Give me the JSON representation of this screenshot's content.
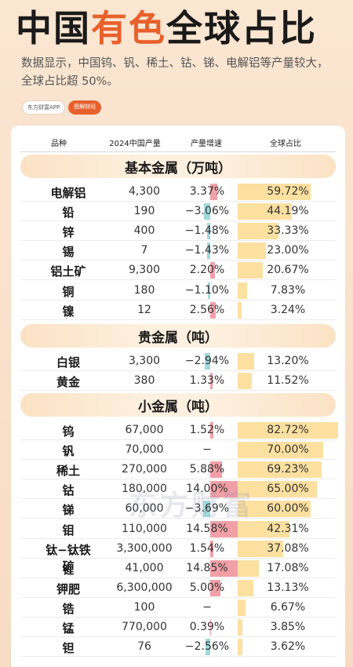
{
  "title": {
    "part1": "中国",
    "highlight": "有色",
    "part2": "全球占比"
  },
  "subtitle": "数据显示，中国钨、钒、稀土、钴、锑、电解铝等产量较大，全球占比超 50%。",
  "tags": {
    "app": "东方财富APP",
    "finance": "图解财经"
  },
  "watermark": "东方财富",
  "colors": {
    "accent": "#e8602c",
    "positive": "#f2a0a8",
    "negative": "#9fd9dd",
    "share": "#fbe0a0"
  },
  "chart_data": {
    "type": "table",
    "columns": [
      "品种",
      "2024中国产量",
      "产量增速",
      "全球占比"
    ],
    "groups": [
      {
        "name": "基本金属（万吨）",
        "rows": [
          {
            "name": "电解铝",
            "production": "4,300",
            "growth": 3.37,
            "growth_label": "3.37%",
            "share": 59.72,
            "share_label": "59.72%"
          },
          {
            "name": "铅",
            "production": "190",
            "growth": -3.06,
            "growth_label": "−3.06%",
            "share": 44.19,
            "share_label": "44.19%"
          },
          {
            "name": "锌",
            "production": "400",
            "growth": -1.48,
            "growth_label": "−1.48%",
            "share": 33.33,
            "share_label": "33.33%"
          },
          {
            "name": "锡",
            "production": "7",
            "growth": -1.43,
            "growth_label": "−1.43%",
            "share": 23.0,
            "share_label": "23.00%"
          },
          {
            "name": "铝土矿",
            "production": "9,300",
            "growth": 2.2,
            "growth_label": "2.20%",
            "share": 20.67,
            "share_label": "20.67%"
          },
          {
            "name": "铜",
            "production": "180",
            "growth": -1.1,
            "growth_label": "−1.10%",
            "share": 7.83,
            "share_label": "7.83%"
          },
          {
            "name": "镍",
            "production": "12",
            "growth": 2.56,
            "growth_label": "2.56%",
            "share": 3.24,
            "share_label": "3.24%"
          }
        ]
      },
      {
        "name": "贵金属（吨）",
        "rows": [
          {
            "name": "白银",
            "production": "3,300",
            "growth": -2.94,
            "growth_label": "−2.94%",
            "share": 13.2,
            "share_label": "13.20%"
          },
          {
            "name": "黄金",
            "production": "380",
            "growth": 1.33,
            "growth_label": "1.33%",
            "share": 11.52,
            "share_label": "11.52%"
          }
        ]
      },
      {
        "name": "小金属（吨）",
        "rows": [
          {
            "name": "钨",
            "production": "67,000",
            "growth": 1.52,
            "growth_label": "1.52%",
            "share": 82.72,
            "share_label": "82.72%"
          },
          {
            "name": "钒",
            "production": "70,000",
            "growth": null,
            "growth_label": "−",
            "share": 70.0,
            "share_label": "70.00%"
          },
          {
            "name": "稀土",
            "production": "270,000",
            "growth": 5.88,
            "growth_label": "5.88%",
            "share": 69.23,
            "share_label": "69.23%"
          },
          {
            "name": "钴",
            "production": "180,000",
            "growth": 14.0,
            "growth_label": "14.00%",
            "share": 65.0,
            "share_label": "65.00%"
          },
          {
            "name": "锑",
            "production": "60,000",
            "growth": -3.69,
            "growth_label": "−3.69%",
            "share": 60.0,
            "share_label": "60.00%"
          },
          {
            "name": "钼",
            "production": "110,000",
            "growth": 14.58,
            "growth_label": "14.58%",
            "share": 42.31,
            "share_label": "42.31%"
          },
          {
            "name": "钛−钛铁矿",
            "production": "3,300,000",
            "growth": 1.54,
            "growth_label": "1.54%",
            "share": 37.08,
            "share_label": "37.08%"
          },
          {
            "name": "锂",
            "production": "41,000",
            "growth": 14.85,
            "growth_label": "14.85%",
            "share": 17.08,
            "share_label": "17.08%"
          },
          {
            "name": "钾肥",
            "production": "6,300,000",
            "growth": 5.0,
            "growth_label": "5.00%",
            "share": 13.13,
            "share_label": "13.13%"
          },
          {
            "name": "锆",
            "production": "100",
            "growth": null,
            "growth_label": "−",
            "share": 6.67,
            "share_label": "6.67%"
          },
          {
            "name": "锰",
            "production": "770,000",
            "growth": 0.39,
            "growth_label": "0.39%",
            "share": 3.85,
            "share_label": "3.85%"
          },
          {
            "name": "钽",
            "production": "76",
            "growth": -2.56,
            "growth_label": "−2.56%",
            "share": 3.62,
            "share_label": "3.62%"
          }
        ]
      }
    ]
  }
}
